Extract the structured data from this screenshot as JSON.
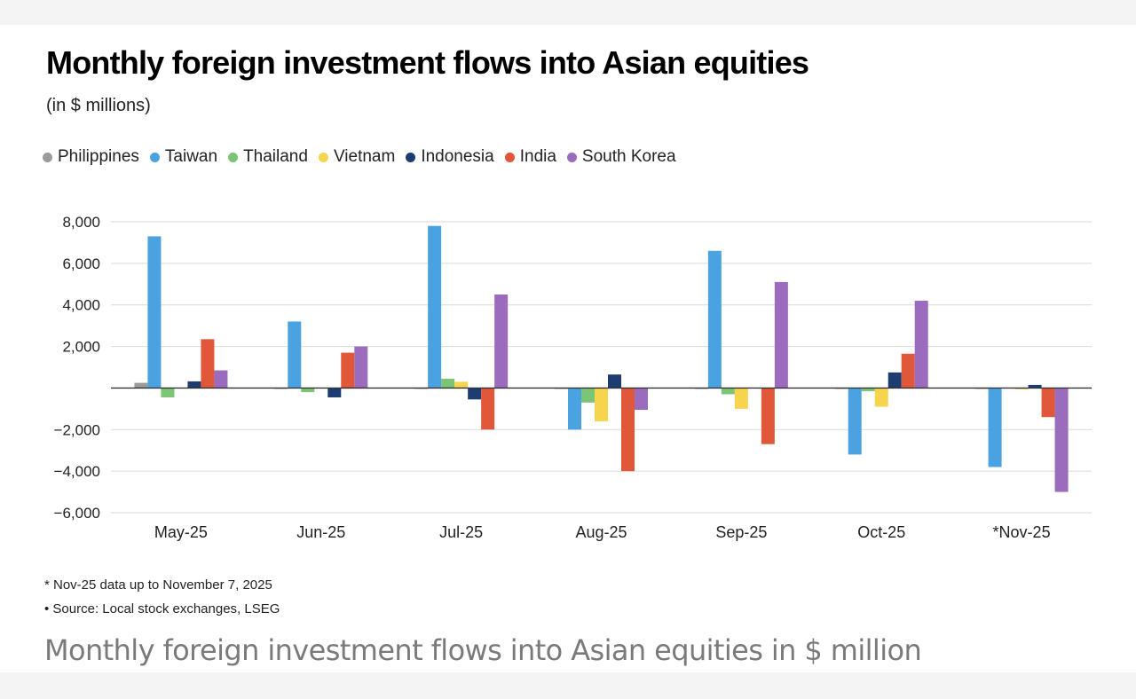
{
  "caption": "Monthly foreign investment flows into Asian equities in $ million",
  "notes": [
    "* Nov-25 data up to November 7, 2025",
    "• Source: Local stock exchanges, LSEG"
  ],
  "chart_data": {
    "type": "bar",
    "title": "Monthly foreign investment flows into Asian equities",
    "subtitle": "(in $ millions)",
    "xlabel": "",
    "ylabel": "",
    "ylim": [
      -6000,
      8000
    ],
    "yticks": [
      8000,
      6000,
      4000,
      2000,
      -2000,
      -4000,
      -6000
    ],
    "ytick_labels": [
      "8,000",
      "6,000",
      "4,000",
      "2,000",
      "−2,000",
      "−4,000",
      "−6,000"
    ],
    "grid": true,
    "legend_position": "top-left",
    "categories": [
      "May-25",
      "Jun-25",
      "Jul-25",
      "Aug-25",
      "Sep-25",
      "Oct-25",
      "*Nov-25"
    ],
    "series": [
      {
        "name": "Philippines",
        "color": "#9b9b9b",
        "values": [
          250,
          -40,
          -20,
          -30,
          -20,
          -40,
          -20
        ]
      },
      {
        "name": "Taiwan",
        "color": "#4aa3e0",
        "values": [
          7300,
          3200,
          7800,
          -2000,
          6600,
          -3200,
          -3800
        ]
      },
      {
        "name": "Thailand",
        "color": "#7cc576",
        "values": [
          -450,
          -200,
          450,
          -700,
          -300,
          -150,
          0
        ]
      },
      {
        "name": "Vietnam",
        "color": "#f6d44e",
        "values": [
          0,
          0,
          300,
          -1600,
          -1000,
          -900,
          -60
        ]
      },
      {
        "name": "Indonesia",
        "color": "#1d3d72",
        "values": [
          320,
          -450,
          -550,
          650,
          0,
          750,
          150
        ]
      },
      {
        "name": "India",
        "color": "#e0573a",
        "values": [
          2350,
          1700,
          -2000,
          -4000,
          -2700,
          1650,
          -1400
        ]
      },
      {
        "name": "South Korea",
        "color": "#9b6bbd",
        "values": [
          850,
          2000,
          4500,
          -1050,
          5100,
          4200,
          -5000
        ]
      }
    ]
  }
}
